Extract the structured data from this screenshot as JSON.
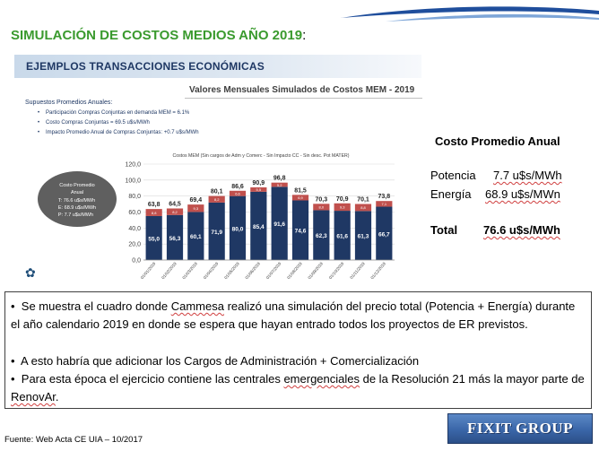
{
  "slide": {
    "title": "SIMULACIÓN DE COSTOS MEDIOS AÑO 2019",
    "title_colon": ":"
  },
  "embedded": {
    "banner": "EJEMPLOS TRANSACCIONES ECONÓMICAS",
    "subtitle": "Valores Mensuales Simulados de Costos MEM - 2019",
    "assumptions_header": "Supuestos Promedios Anuales:",
    "assumptions": [
      "Participación Compras Conjuntas en demanda MEM = 6.1%",
      "Costo Compras Conjuntas = 69.5 u$s/MWh",
      "Impacto Promedio Anual de Compras Conjuntas: +0.7 u$s/MWh"
    ],
    "ellipse": {
      "title_1": "Costo Promedio",
      "title_2": "Anual",
      "lines": [
        "T: 76.6 u$s/MWh",
        "E: 68.9 u$s/MWh",
        "P: 7.7 u$s/MWh"
      ]
    }
  },
  "chart_data": {
    "type": "bar",
    "title": "Costos MEM (Sin cargos de Adm y Comerc - Sin Impacto CC - Sin desc. Pot MATER)",
    "categories": [
      "01/01/2019",
      "01/02/2019",
      "01/03/2019",
      "01/04/2019",
      "01/05/2019",
      "01/06/2019",
      "01/07/2019",
      "01/08/2019",
      "01/09/2019",
      "01/10/2019",
      "01/11/2019",
      "01/12/2019"
    ],
    "series": [
      {
        "name": "E",
        "values": [
          55.0,
          56.3,
          60.1,
          71.9,
          80.0,
          85.4,
          91.6,
          74.6,
          62.3,
          61.6,
          61.3,
          66.7
        ]
      },
      {
        "name": "P",
        "values": [
          8.8,
          8.2,
          9.3,
          8.2,
          6.6,
          5.5,
          5.2,
          6.9,
          8.0,
          9.3,
          8.8,
          7.1
        ]
      }
    ],
    "totals": [
      "63,8",
      "64,5",
      "69,4",
      "80,1",
      "86,6",
      "90,9",
      "96,8",
      "81,5",
      "70,3",
      "70,9",
      "70,1",
      "73,8"
    ],
    "bottom_labels": [
      "55,0",
      "56,3",
      "60,1",
      "71,9",
      "80,0",
      "85,4",
      "91,6",
      "74,6",
      "62,3",
      "61,6",
      "61,3",
      "66,7"
    ],
    "ylim": [
      0,
      120
    ],
    "yticks": [
      "0,0",
      "20,0",
      "40,0",
      "60,0",
      "80,0",
      "100,0",
      "120,0"
    ],
    "grid": true,
    "legend": [
      "E",
      "P"
    ],
    "legend_position": "bottom",
    "colors": {
      "E": "#1f3864",
      "P": "#c0504d"
    }
  },
  "right_panel": {
    "title": "Costo Promedio Anual",
    "potencia_label": "Potencia",
    "potencia_value": "7.7 u$s/MWh",
    "energia_label": "Energía",
    "energia_value": "68.9 u$s/MWn",
    "total_label": "Total",
    "total_value": "76.6 u$s/MWh"
  },
  "bullets": [
    "Se muestra el cuadro donde Cammesa realizó una simulación del precio total (Potencia + Energía) durante el año calendario 2019 en donde se espera que hayan entrado todos los proyectos de ER previstos.",
    "A esto habría que adicionar los Cargos de Administración + Comercialización",
    "Para esta época el ejercicio contiene las centrales emergenciales de la Resolución 21 más la mayor parte de RenovAr."
  ],
  "footer": "Fuente:  Web Acta CE UIA – 10/2017",
  "logo": "FIXIT GROUP"
}
